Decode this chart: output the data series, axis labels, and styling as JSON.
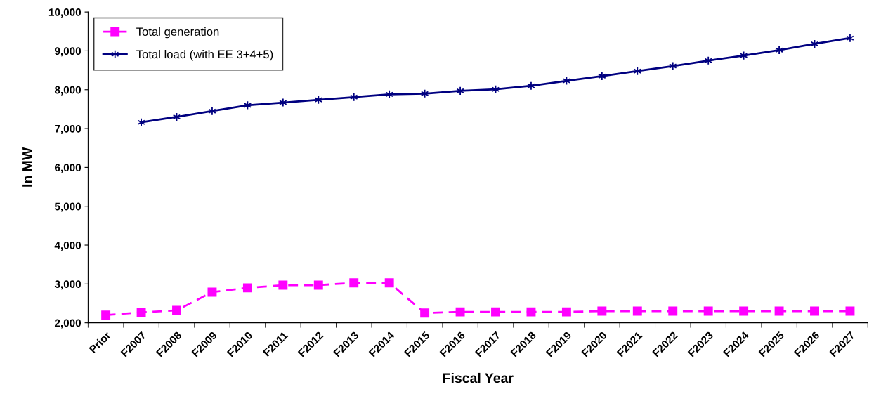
{
  "chart_data": {
    "type": "line",
    "xlabel": "Fiscal Year",
    "ylabel": "In MW",
    "categories": [
      "Prior",
      "F2007",
      "F2008",
      "F2009",
      "F2010",
      "F2011",
      "F2012",
      "F2013",
      "F2014",
      "F2015",
      "F2016",
      "F2017",
      "F2018",
      "F2019",
      "F2020",
      "F2021",
      "F2022",
      "F2023",
      "F2024",
      "F2025",
      "F2026",
      "F2027"
    ],
    "series": [
      {
        "name": "Total generation",
        "color": "#ff00ff",
        "marker": "square",
        "line_style": "dashed",
        "values": [
          2200,
          2270,
          2320,
          2790,
          2900,
          2970,
          2970,
          3030,
          3030,
          2250,
          2280,
          2280,
          2280,
          2280,
          2300,
          2300,
          2300,
          2300,
          2300,
          2300,
          2300,
          2300
        ]
      },
      {
        "name": "Total load (with EE 3+4+5)",
        "color": "#000080",
        "marker": "cross",
        "line_style": "solid",
        "values": [
          null,
          7160,
          7300,
          7450,
          7600,
          7670,
          7740,
          7810,
          7880,
          7900,
          7970,
          8010,
          8100,
          8230,
          8350,
          8480,
          8610,
          8750,
          8880,
          9020,
          9180,
          9330
        ]
      }
    ],
    "ylim": [
      2000,
      10000
    ],
    "yticks": [
      {
        "value": 2000,
        "label": "2,000"
      },
      {
        "value": 3000,
        "label": "3,000"
      },
      {
        "value": 4000,
        "label": "4,000"
      },
      {
        "value": 5000,
        "label": "5,000"
      },
      {
        "value": 6000,
        "label": "6,000"
      },
      {
        "value": 7000,
        "label": "7,000"
      },
      {
        "value": 8000,
        "label": "8,000"
      },
      {
        "value": 9000,
        "label": "9,000"
      },
      {
        "value": 10000,
        "label": "10,000"
      }
    ],
    "grid": false,
    "legend": "top left"
  }
}
